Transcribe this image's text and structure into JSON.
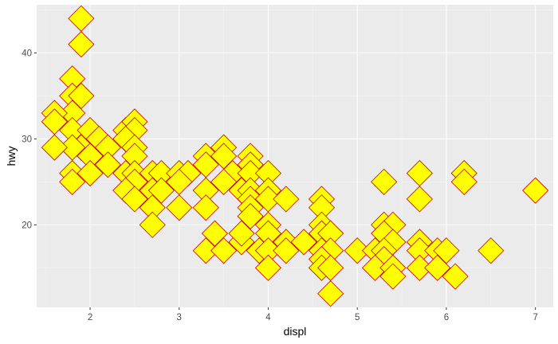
{
  "chart_data": {
    "type": "scatter",
    "title": "",
    "xlabel": "displ",
    "ylabel": "hwy",
    "xlim": [
      1.4,
      7.2
    ],
    "ylim": [
      10.4,
      45.6
    ],
    "xticks": [
      2,
      3,
      4,
      5,
      6,
      7
    ],
    "yticks": [
      20,
      30,
      40
    ],
    "x_tick_labels": [
      "2",
      "3",
      "4",
      "5",
      "6",
      "7"
    ],
    "y_tick_labels": [
      "20",
      "30",
      "40"
    ],
    "grid": true,
    "legend": "none",
    "marker": "diamond",
    "colors": {
      "panel": "#ebebeb",
      "grid_major": "#ffffff",
      "fill": "#ffff00",
      "stroke": "#cc0000"
    },
    "points": [
      [
        1.9,
        44
      ],
      [
        1.9,
        41
      ],
      [
        1.8,
        37
      ],
      [
        1.8,
        35
      ],
      [
        1.9,
        35
      ],
      [
        1.8,
        33
      ],
      [
        1.6,
        33
      ],
      [
        1.6,
        32
      ],
      [
        1.8,
        31
      ],
      [
        2.0,
        31
      ],
      [
        1.9,
        29
      ],
      [
        2.1,
        30
      ],
      [
        1.8,
        29
      ],
      [
        1.6,
        29
      ],
      [
        2.0,
        28
      ],
      [
        1.8,
        26
      ],
      [
        2.0,
        26
      ],
      [
        1.8,
        25
      ],
      [
        2.2,
        29
      ],
      [
        2.4,
        31
      ],
      [
        2.5,
        32
      ],
      [
        2.5,
        31
      ],
      [
        2.4,
        30
      ],
      [
        2.5,
        29
      ],
      [
        2.5,
        28
      ],
      [
        2.2,
        27
      ],
      [
        2.4,
        26
      ],
      [
        2.5,
        26
      ],
      [
        2.5,
        25
      ],
      [
        2.4,
        24
      ],
      [
        2.5,
        23
      ],
      [
        2.7,
        26
      ],
      [
        2.8,
        26
      ],
      [
        2.7,
        24
      ],
      [
        2.8,
        24
      ],
      [
        3.0,
        26
      ],
      [
        3.1,
        26
      ],
      [
        3.0,
        25
      ],
      [
        2.7,
        22
      ],
      [
        3.0,
        22
      ],
      [
        2.7,
        20
      ],
      [
        3.3,
        28
      ],
      [
        3.3,
        27
      ],
      [
        3.5,
        29
      ],
      [
        3.5,
        28
      ],
      [
        3.6,
        26
      ],
      [
        3.5,
        25
      ],
      [
        3.8,
        28
      ],
      [
        3.8,
        27
      ],
      [
        3.8,
        26
      ],
      [
        4.0,
        26
      ],
      [
        3.3,
        24
      ],
      [
        3.3,
        22
      ],
      [
        3.7,
        24
      ],
      [
        3.8,
        24
      ],
      [
        3.8,
        23
      ],
      [
        3.8,
        22
      ],
      [
        4.0,
        24
      ],
      [
        4.0,
        23
      ],
      [
        4.2,
        23
      ],
      [
        3.8,
        21
      ],
      [
        4.0,
        20
      ],
      [
        4.0,
        19
      ],
      [
        3.4,
        19
      ],
      [
        3.3,
        17
      ],
      [
        3.5,
        17
      ],
      [
        3.7,
        18
      ],
      [
        3.7,
        19
      ],
      [
        3.9,
        17
      ],
      [
        4.0,
        17
      ],
      [
        4.0,
        15
      ],
      [
        4.2,
        18
      ],
      [
        4.2,
        17
      ],
      [
        4.4,
        18
      ],
      [
        4.6,
        23
      ],
      [
        4.6,
        22
      ],
      [
        4.6,
        20
      ],
      [
        4.6,
        19
      ],
      [
        4.7,
        19
      ],
      [
        4.6,
        17
      ],
      [
        4.7,
        17
      ],
      [
        4.6,
        16
      ],
      [
        4.6,
        15
      ],
      [
        4.7,
        15
      ],
      [
        4.7,
        12
      ],
      [
        5.0,
        17
      ],
      [
        5.2,
        17
      ],
      [
        5.3,
        25
      ],
      [
        5.3,
        20
      ],
      [
        5.4,
        20
      ],
      [
        5.3,
        19
      ],
      [
        5.4,
        18
      ],
      [
        5.3,
        17
      ],
      [
        5.3,
        16
      ],
      [
        5.2,
        15
      ],
      [
        5.4,
        15
      ],
      [
        5.4,
        14
      ],
      [
        5.7,
        26
      ],
      [
        5.7,
        23
      ],
      [
        5.7,
        18
      ],
      [
        5.7,
        17
      ],
      [
        5.7,
        15
      ],
      [
        5.9,
        17
      ],
      [
        6.0,
        17
      ],
      [
        5.9,
        15
      ],
      [
        6.1,
        14
      ],
      [
        6.2,
        26
      ],
      [
        6.2,
        25
      ],
      [
        6.5,
        17
      ],
      [
        7.0,
        24
      ]
    ]
  }
}
